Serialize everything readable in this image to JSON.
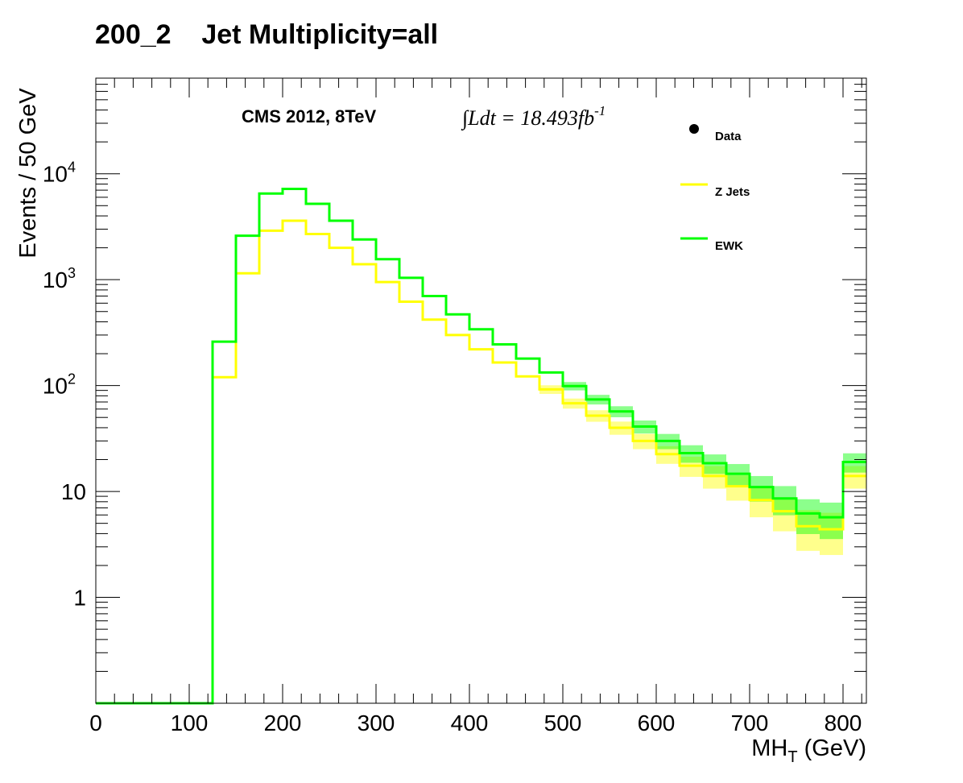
{
  "chart_data": {
    "type": "line",
    "title": "200_2    Jet Multiplicity=all",
    "xlabel": "MH",
    "xlabel_sub": "T",
    "xlabel_unit": " (GeV)",
    "ylabel": "Events / 50 GeV",
    "log_y": true,
    "xlim": [
      0,
      825
    ],
    "ylim": [
      0.1,
      80000
    ],
    "x_ticks": [
      0,
      100,
      200,
      300,
      400,
      500,
      600,
      700,
      800
    ],
    "x_tick_labels": [
      "0",
      "100",
      "200",
      "300",
      "400",
      "500",
      "600",
      "700",
      "800"
    ],
    "y_ticks": [
      1,
      10,
      100,
      1000,
      10000
    ],
    "y_tick_labels": [
      {
        "base": "1",
        "exp": ""
      },
      {
        "base": "10",
        "exp": ""
      },
      {
        "base": "10",
        "exp": "2"
      },
      {
        "base": "10",
        "exp": "3"
      },
      {
        "base": "10",
        "exp": "4"
      }
    ],
    "bin_width": 25,
    "bin_edges": [
      0,
      25,
      50,
      75,
      100,
      125,
      150,
      175,
      200,
      225,
      250,
      275,
      300,
      325,
      350,
      375,
      400,
      425,
      450,
      475,
      500,
      525,
      550,
      575,
      600,
      625,
      650,
      675,
      700,
      725,
      750,
      775,
      800,
      825
    ],
    "series": [
      {
        "name": "Z Jets",
        "color": "#ffff00",
        "values": [
          0.1,
          0.1,
          0.1,
          0.1,
          0.1,
          120,
          1150,
          2900,
          3600,
          2700,
          2000,
          1400,
          950,
          620,
          420,
          300,
          220,
          165,
          122,
          92,
          68,
          52,
          40,
          30,
          22.5,
          17.5,
          14,
          11.2,
          8.3,
          6.5,
          4.7,
          4.4,
          14
        ]
      },
      {
        "name": "EWK",
        "color": "#00ff00",
        "values": [
          0.1,
          0.1,
          0.1,
          0.1,
          0.1,
          260,
          2600,
          6500,
          7200,
          5200,
          3600,
          2400,
          1560,
          1040,
          700,
          470,
          340,
          245,
          180,
          133,
          99,
          74,
          57,
          41,
          30,
          23,
          18.5,
          14.7,
          11,
          8.6,
          6.2,
          5.7,
          19
        ]
      }
    ],
    "legend": {
      "position": "top-right",
      "entries": [
        {
          "label": "Data",
          "marker": "dot",
          "color": "#000000"
        },
        {
          "label": "Z Jets",
          "marker": "line",
          "color": "#ffff00"
        },
        {
          "label": "EWK",
          "marker": "line",
          "color": "#00ff00"
        }
      ]
    },
    "annotations": [
      {
        "text": "CMS 2012, 8TeV"
      },
      {
        "text": "∫Ldt = 18.493fb",
        "superscript": "-1"
      }
    ]
  }
}
